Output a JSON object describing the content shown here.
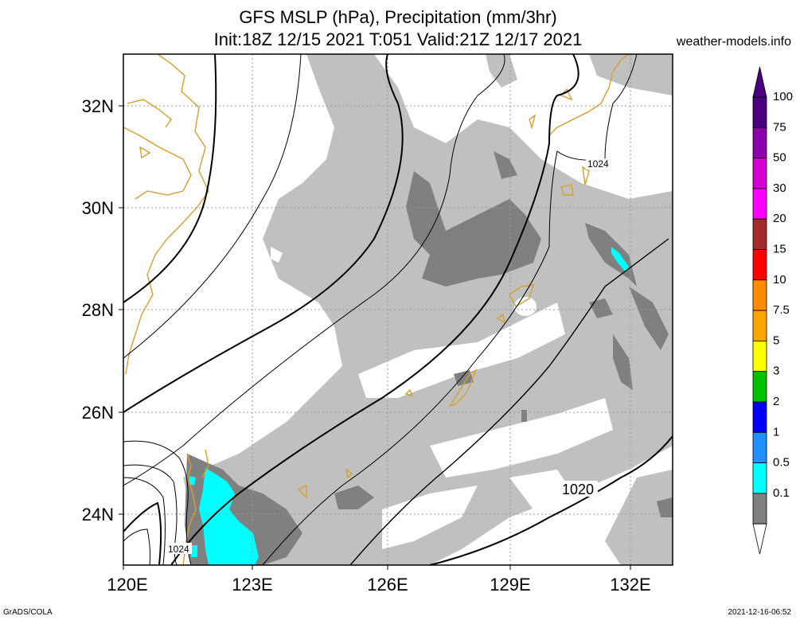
{
  "title": {
    "line1": "GFS MSLP (hPa), Precipitation (mm/3hr)",
    "line2": "Init:18Z 12/15 2021 T:051 Valid:21Z 12/17 2021",
    "site": "weather-models.info"
  },
  "footer": {
    "left": "GrADS/COLA",
    "right": "2021-12-16-06:52"
  },
  "map": {
    "lon_labels": [
      "120E",
      "123E",
      "126E",
      "129E",
      "132E"
    ],
    "lat_labels": [
      "32N",
      "30N",
      "28N",
      "26N",
      "24N"
    ],
    "contour_labels": [
      "1024",
      "1020",
      "1024"
    ]
  },
  "legend": {
    "levels": [
      {
        "label": "100",
        "color": "#4b0082"
      },
      {
        "label": "75",
        "color": "#8b00a8"
      },
      {
        "label": "50",
        "color": "#d400d4"
      },
      {
        "label": "30",
        "color": "#ff00ff"
      },
      {
        "label": "20",
        "color": "#a52a2a"
      },
      {
        "label": "15",
        "color": "#ff0000"
      },
      {
        "label": "10",
        "color": "#ff8c00"
      },
      {
        "label": "7.5",
        "color": "#ffa500"
      },
      {
        "label": "5",
        "color": "#ffff00"
      },
      {
        "label": "3",
        "color": "#00c000"
      },
      {
        "label": "2",
        "color": "#0000ff"
      },
      {
        "label": "1",
        "color": "#1e90ff"
      },
      {
        "label": "0.5",
        "color": "#00ffff"
      },
      {
        "label": "0.1",
        "color": "#808080"
      }
    ],
    "bottom_color": "#c0c0c0"
  },
  "colors": {
    "precip_light": "#c0c0c0",
    "precip_medium": "#808080",
    "precip_heavy": "#00ffff",
    "coastline": "#d4a030",
    "isobar": "#000000",
    "grid": "#999999"
  }
}
